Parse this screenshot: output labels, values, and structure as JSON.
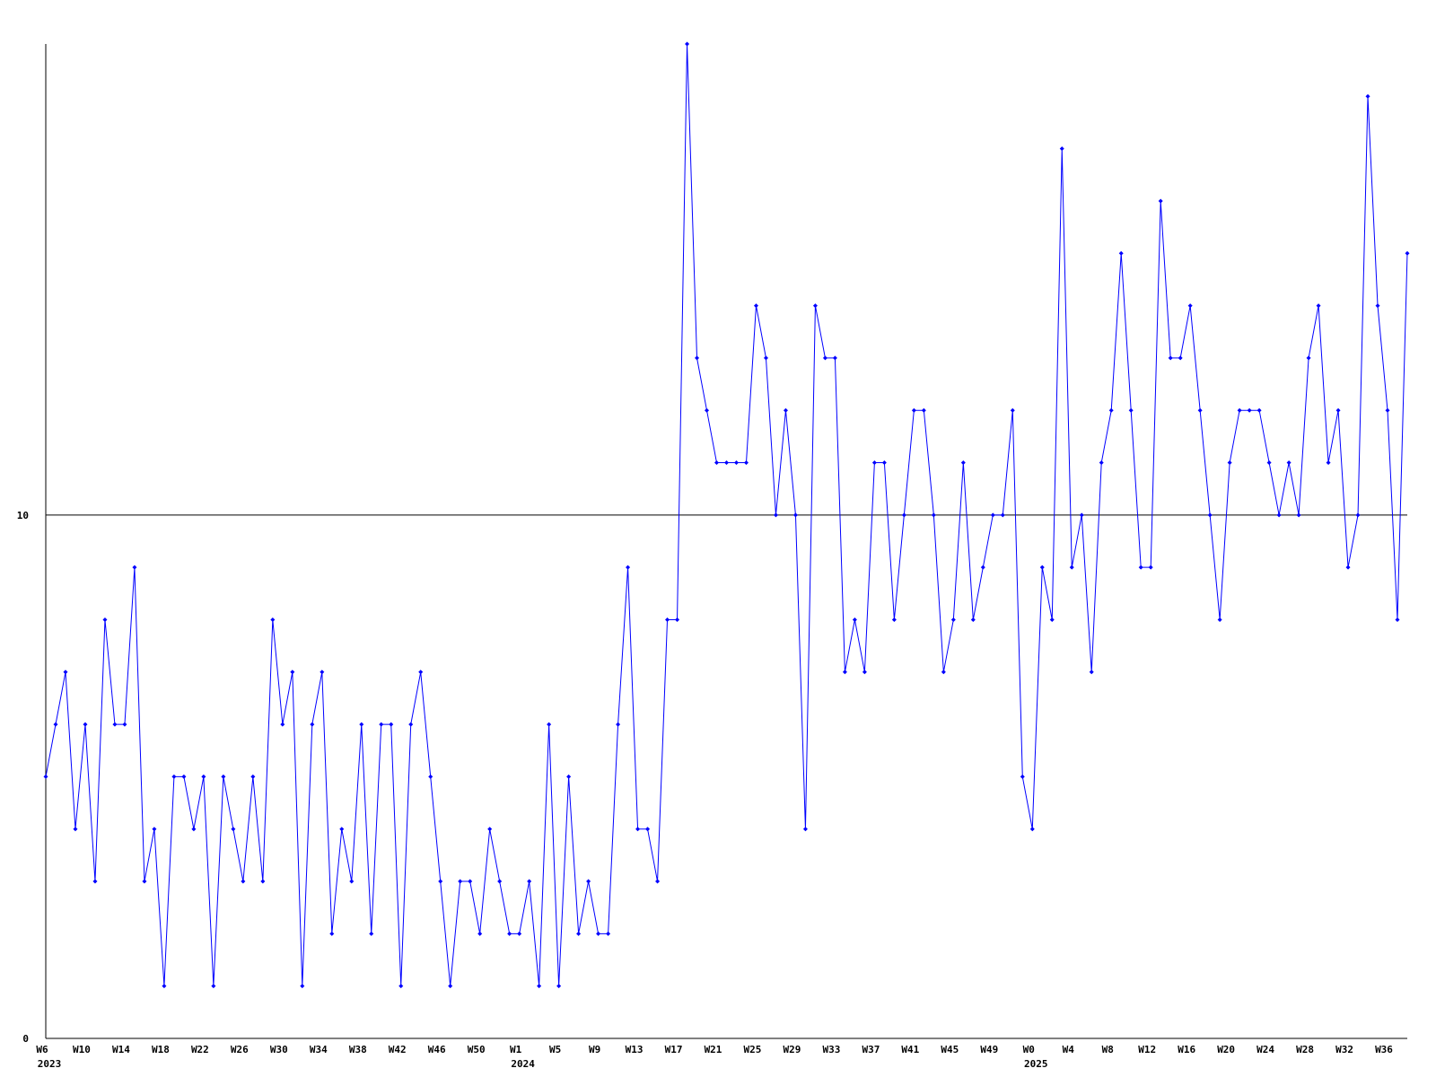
{
  "chart_data": {
    "type": "line",
    "categories": [
      "W6",
      null,
      null,
      null,
      "W10",
      null,
      null,
      null,
      "W14",
      null,
      null,
      null,
      "W18",
      null,
      null,
      null,
      "W22",
      null,
      null,
      null,
      "W26",
      null,
      null,
      null,
      "W30",
      null,
      null,
      null,
      "W34",
      null,
      null,
      null,
      "W38",
      null,
      null,
      null,
      "W42",
      null,
      null,
      null,
      "W46",
      null,
      null,
      null,
      "W50",
      null,
      null,
      null,
      "W1",
      null,
      null,
      null,
      "W5",
      null,
      null,
      null,
      "W9",
      null,
      null,
      null,
      "W13",
      null,
      null,
      null,
      "W17",
      null,
      null,
      null,
      "W21",
      null,
      null,
      null,
      "W25",
      null,
      null,
      null,
      "W29",
      null,
      null,
      null,
      "W33",
      null,
      null,
      null,
      "W37",
      null,
      null,
      null,
      "W41",
      null,
      null,
      null,
      "W45",
      null,
      null,
      null,
      "W49",
      null,
      null,
      null,
      "W0",
      null,
      null,
      null,
      "W4",
      null,
      null,
      null,
      "W8",
      null,
      null,
      null,
      "W12",
      null,
      null,
      null,
      "W16",
      null,
      null,
      null,
      "W20",
      null,
      null,
      null,
      "W24",
      null,
      null,
      null,
      "W28",
      null,
      null,
      null,
      "W32",
      null,
      null,
      null,
      "W36",
      null,
      null
    ],
    "year_labels": [
      "2023",
      null,
      null,
      null,
      null,
      null,
      null,
      null,
      null,
      null,
      null,
      null,
      null,
      null,
      null,
      null,
      null,
      null,
      null,
      null,
      null,
      null,
      null,
      null,
      null,
      null,
      null,
      null,
      null,
      null,
      null,
      null,
      null,
      null,
      null,
      null,
      null,
      null,
      null,
      null,
      null,
      null,
      null,
      null,
      null,
      null,
      null,
      null,
      "2024",
      null,
      null,
      null,
      null,
      null,
      null,
      null,
      null,
      null,
      null,
      null,
      null,
      null,
      null,
      null,
      null,
      null,
      null,
      null,
      null,
      null,
      null,
      null,
      null,
      null,
      null,
      null,
      null,
      null,
      null,
      null,
      null,
      null,
      null,
      null,
      null,
      null,
      null,
      null,
      null,
      null,
      null,
      null,
      null,
      null,
      null,
      null,
      null,
      null,
      null,
      null,
      "2025",
      null,
      null,
      null,
      null,
      null,
      null,
      null,
      null,
      null,
      null,
      null,
      null,
      null,
      null,
      null,
      null,
      null,
      null,
      null,
      null,
      null,
      null,
      null,
      null,
      null,
      null,
      null,
      null,
      null,
      null,
      null,
      null,
      null,
      null,
      null,
      null,
      null,
      null
    ],
    "series": [
      {
        "color": "#0000ff",
        "values": [
          5,
          6,
          7,
          4,
          6,
          3,
          8,
          6,
          6,
          9,
          3,
          4,
          1,
          5,
          5,
          4,
          5,
          1,
          5,
          4,
          3,
          5,
          3,
          8,
          6,
          7,
          1,
          6,
          7,
          2,
          4,
          3,
          6,
          2,
          6,
          6,
          1,
          6,
          7,
          5,
          3,
          1,
          3,
          3,
          2,
          4,
          3,
          2,
          2,
          3,
          1,
          6,
          1,
          5,
          2,
          3,
          2,
          2,
          6,
          9,
          4,
          4,
          3,
          8,
          8,
          19,
          13,
          12,
          11,
          11,
          11,
          11,
          14,
          13,
          10,
          12,
          10,
          4,
          14,
          13,
          13,
          7,
          8,
          7,
          11,
          11,
          8,
          10,
          12,
          12,
          10,
          7,
          8,
          11,
          8,
          9,
          10,
          10,
          12,
          5,
          4,
          9,
          8,
          17,
          9,
          10,
          7,
          11,
          12,
          15,
          12,
          9,
          9,
          16,
          13,
          13,
          14,
          12,
          10,
          8,
          11,
          12,
          12,
          12,
          11,
          10,
          11,
          10,
          13,
          14,
          11,
          12,
          9,
          10,
          18,
          14,
          12,
          8,
          15
        ]
      }
    ],
    "ylim": [
      0,
      19
    ],
    "yticks": [
      0,
      10
    ],
    "grid": true
  }
}
